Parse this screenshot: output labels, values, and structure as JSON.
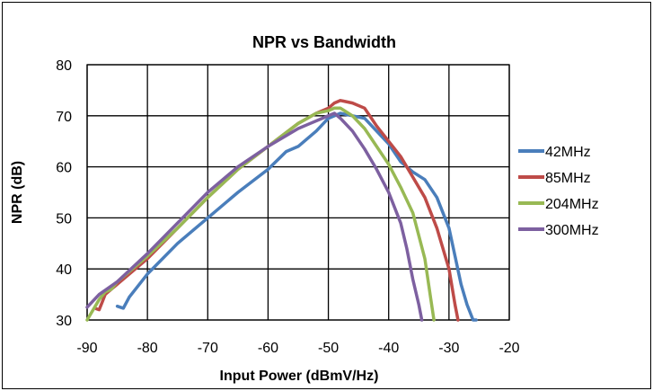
{
  "chart_data": {
    "type": "line",
    "title": "NPR vs Bandwidth",
    "xlabel": "Input Power (dBmV/Hz)",
    "ylabel": "NPR (dB)",
    "xlim": [
      -90,
      -20
    ],
    "ylim": [
      30,
      80
    ],
    "xticks": [
      "-90",
      "-80",
      "-70",
      "-60",
      "-50",
      "-40",
      "-30",
      "-20"
    ],
    "yticks": [
      "30",
      "40",
      "50",
      "60",
      "70",
      "80"
    ],
    "grid": true,
    "legend_position": "right",
    "series": [
      {
        "name": "42MHz",
        "color": "#4a7ebb",
        "x": [
          -85,
          -84,
          -83,
          -80,
          -75,
          -70,
          -65,
          -60,
          -57,
          -55,
          -52,
          -50,
          -48,
          -46,
          -44,
          -42,
          -40,
          -38,
          -36,
          -34,
          -32,
          -30,
          -28,
          -27,
          -26,
          -25.5
        ],
        "y": [
          32.7,
          32.3,
          34.5,
          39,
          45,
          50,
          55,
          59.5,
          63,
          64,
          67,
          69.5,
          70.5,
          70,
          69.5,
          67,
          64.5,
          61,
          59,
          57.5,
          54,
          48,
          37,
          33,
          30,
          30
        ]
      },
      {
        "name": "85MHz",
        "color": "#be4b48",
        "x": [
          -88.5,
          -88,
          -87.5,
          -87,
          -85,
          -80,
          -75,
          -70,
          -65,
          -60,
          -55,
          -52,
          -50,
          -49,
          -48,
          -46,
          -44,
          -42,
          -40,
          -38,
          -36,
          -34,
          -32,
          -30,
          -29,
          -28.5
        ],
        "y": [
          32.2,
          32,
          33.5,
          35,
          37,
          42,
          48,
          54,
          59.5,
          64,
          68.5,
          70.5,
          71.5,
          72.5,
          73,
          72.5,
          71.5,
          68,
          65,
          62,
          58,
          54,
          48,
          40,
          33,
          30
        ]
      },
      {
        "name": "204MHz",
        "color": "#98b954",
        "x": [
          -90,
          -88,
          -87,
          -86,
          -85,
          -80,
          -75,
          -70,
          -65,
          -60,
          -55,
          -52,
          -50,
          -49,
          -48,
          -46,
          -44,
          -42,
          -40,
          -38,
          -36,
          -34,
          -33,
          -32.5
        ],
        "y": [
          30,
          34,
          35.5,
          36,
          37.5,
          42.5,
          48,
          54,
          59.5,
          64,
          68.5,
          70.5,
          71,
          71.5,
          71.5,
          70,
          67.5,
          64,
          60.5,
          56,
          51,
          42,
          34,
          30
        ]
      },
      {
        "name": "300MHz",
        "color": "#7d60a0",
        "x": [
          -90,
          -88,
          -85,
          -80,
          -75,
          -70,
          -65,
          -60,
          -55,
          -53,
          -51,
          -50,
          -49,
          -48,
          -46,
          -44,
          -42,
          -40,
          -38,
          -37,
          -36,
          -35,
          -34.5
        ],
        "y": [
          32.5,
          35,
          37.5,
          43,
          49,
          55,
          60,
          64,
          67.5,
          68.5,
          69.5,
          70,
          70.5,
          69.5,
          67,
          63.5,
          59.5,
          55,
          49,
          44,
          38,
          33,
          30
        ]
      }
    ]
  }
}
